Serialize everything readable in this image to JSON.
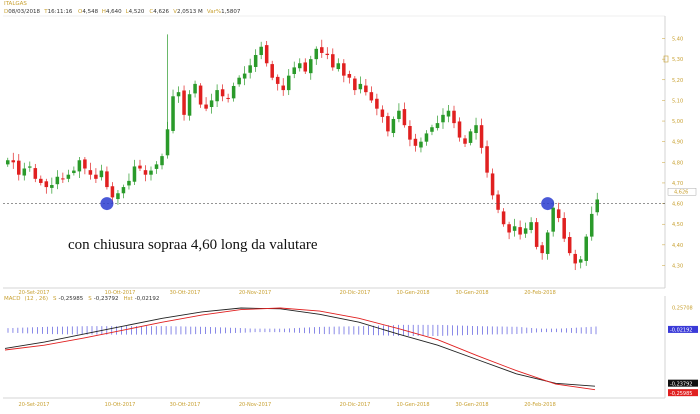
{
  "header": {
    "symbol": "ITALGAS",
    "fields": [
      {
        "prefix": "D",
        "value": "08/03/2018"
      },
      {
        "prefix": "T",
        "value": "16:11:16"
      },
      {
        "prefix": "O",
        "value": "4,548"
      },
      {
        "prefix": "H",
        "value": "4,640"
      },
      {
        "prefix": "L",
        "value": "4,520"
      },
      {
        "prefix": "C",
        "value": "4,626"
      },
      {
        "prefix": "V",
        "value": "2,0513 M"
      },
      {
        "prefix": "Var%",
        "value": "1,5807"
      }
    ]
  },
  "annotation": "con chiusura sopraa 4,60 long da valutare",
  "macd_header": {
    "name": "MACD",
    "params": "(12 , 26)",
    "fields": [
      {
        "prefix": "S",
        "value": "-0,25985"
      },
      {
        "prefix": "S",
        "value": "-0,23792"
      },
      {
        "prefix": "Hst",
        "value": "-0,02192"
      }
    ]
  },
  "colors": {
    "bull": "#2a9a2a",
    "bear": "#e02020",
    "macd_line": "#222222",
    "signal_line": "#e02020",
    "histogram": "#3a3ad8",
    "support_line": "#555555",
    "circle": "#2a3cd0"
  },
  "chart_data": [
    {
      "type": "candlestick",
      "name": "price",
      "x_labels": [
        "20-Set-2017",
        "10-Ott-2017",
        "30-Ott-2017",
        "20-Nov-2017",
        "20-Dic-2017",
        "10-Gen-2018",
        "30-Gen-2018",
        "20-Feb-2018"
      ],
      "y_ticks": [
        "5,40",
        "5,30",
        "5,20",
        "5,10",
        "5,00",
        "4,90",
        "4,80",
        "4,70",
        "4,60",
        "4,50",
        "4,40",
        "4,30"
      ],
      "ylim": [
        4.22,
        5.48
      ],
      "last_price_label": "4,626",
      "support_level": 4.6,
      "closes": [
        4.81,
        4.8,
        4.74,
        4.77,
        4.78,
        4.72,
        4.7,
        4.68,
        4.69,
        4.73,
        4.72,
        4.74,
        4.76,
        4.81,
        4.77,
        4.74,
        4.72,
        4.76,
        4.68,
        4.63,
        4.65,
        4.68,
        4.71,
        4.78,
        4.77,
        4.74,
        4.76,
        4.79,
        4.83,
        4.96,
        5.12,
        5.14,
        5.03,
        5.13,
        5.18,
        5.08,
        5.06,
        5.1,
        5.15,
        5.12,
        5.11,
        5.17,
        5.21,
        5.23,
        5.27,
        5.32,
        5.36,
        5.28,
        5.21,
        5.18,
        5.15,
        5.22,
        5.26,
        5.28,
        5.24,
        5.3,
        5.35,
        5.33,
        5.32,
        5.26,
        5.28,
        5.22,
        5.21,
        5.15,
        5.18,
        5.14,
        5.1,
        5.06,
        5.02,
        4.95,
        5.01,
        5.05,
        4.98,
        4.91,
        4.88,
        4.9,
        4.94,
        4.97,
        4.99,
        5.03,
        5.05,
        4.99,
        4.92,
        4.89,
        4.95,
        4.98,
        4.87,
        4.75,
        4.64,
        4.57,
        4.5,
        4.46,
        4.49,
        4.45,
        4.48,
        4.51,
        4.39,
        4.36,
        4.46,
        4.58,
        4.53,
        4.43,
        4.36,
        4.31,
        4.33,
        4.44,
        4.55,
        4.62
      ]
    },
    {
      "type": "line",
      "name": "MACD",
      "x_labels": [
        "20-Set-2017",
        "10-Ott-2017",
        "30-Ott-2017",
        "20-Nov-2017",
        "20-Dic-2017",
        "10-Gen-2018",
        "30-Gen-2018",
        "20-Feb-2018"
      ],
      "y_ticks": [
        "0,25708"
      ],
      "value_labels": [
        "-0,02192",
        "-0,23792",
        "-0,25985"
      ],
      "ylim": [
        -0.3,
        0.28
      ],
      "series": [
        {
          "name": "MACD",
          "values": [
            0.0,
            0.04,
            0.09,
            0.14,
            0.19,
            0.23,
            0.255,
            0.25,
            0.215,
            0.165,
            0.09,
            0.02,
            -0.07,
            -0.16,
            -0.22,
            -0.238
          ]
        },
        {
          "name": "Signal",
          "values": [
            -0.01,
            0.02,
            0.065,
            0.115,
            0.165,
            0.21,
            0.245,
            0.255,
            0.235,
            0.19,
            0.125,
            0.055,
            -0.045,
            -0.14,
            -0.225,
            -0.26
          ]
        }
      ]
    }
  ]
}
